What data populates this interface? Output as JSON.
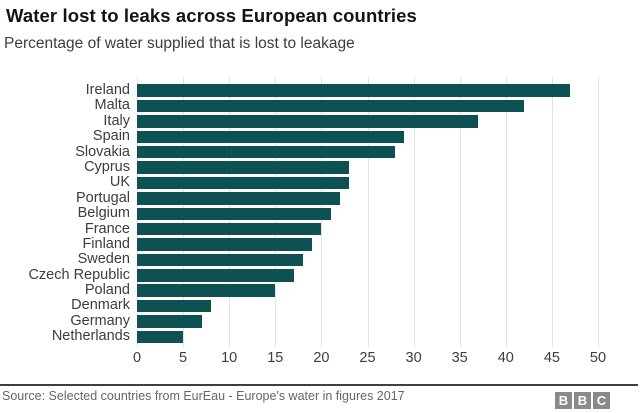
{
  "header": {
    "title": "Water lost to leaks across European countries",
    "subtitle": "Percentage of water supplied that is lost to leakage"
  },
  "chart_data": {
    "type": "bar",
    "orientation": "horizontal",
    "title": "Water lost to leaks across European countries",
    "subtitle": "Percentage of water supplied that is lost to leakage",
    "categories": [
      "Ireland",
      "Malta",
      "Italy",
      "Spain",
      "Slovakia",
      "Cyprus",
      "UK",
      "Portugal",
      "Belgium",
      "France",
      "Finland",
      "Sweden",
      "Czech Republic",
      "Poland",
      "Denmark",
      "Germany",
      "Netherlands"
    ],
    "values": [
      47,
      42,
      37,
      29,
      28,
      23,
      23,
      22,
      21,
      20,
      19,
      18,
      17,
      15,
      8,
      7,
      5
    ],
    "xlabel": "",
    "ylabel": "",
    "xlim": [
      0,
      50
    ],
    "xticks": [
      0,
      5,
      10,
      15,
      20,
      25,
      30,
      35,
      40,
      45,
      50
    ],
    "grid": true,
    "legend": "none",
    "bar_color": "#0e5153",
    "gridline_color": "#e2e2e2"
  },
  "footer": {
    "source": "Source: Selected countries from EurEau - Europe's water in figures 2017",
    "logo_letters": [
      "B",
      "B",
      "C"
    ]
  }
}
